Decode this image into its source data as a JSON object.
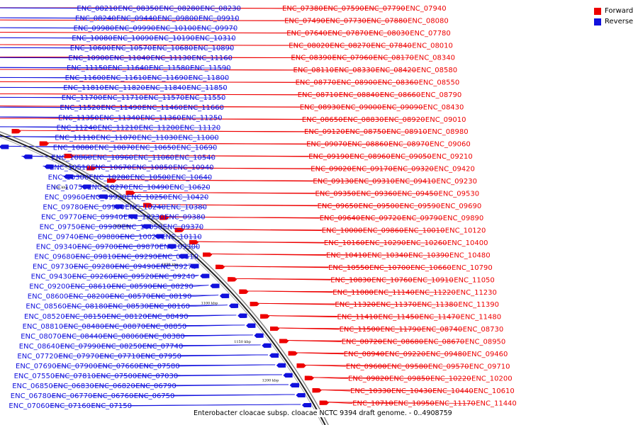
{
  "title": "Enterobacter cloacae subsp. cloacae NCTC 9394 draft genome. - 0..4908759",
  "legend": {
    "forward_label": "Forward",
    "reverse_label": "Reverse",
    "forward_color": "#ee0000",
    "reverse_color": "#1111dd"
  },
  "tick_marks": [
    "750 kbp",
    "800 kbp",
    "850 kbp",
    "900 kbp",
    "950 kbp",
    "1000 kbp",
    "1050 kbp",
    "1100 kbp",
    "1150 kbp",
    "1200 kbp"
  ],
  "forward_genes": [
    "ENC_07380",
    "ENC_07590",
    "ENC_07790",
    "ENC_07940",
    "ENC_07490",
    "ENC_07730",
    "ENC_07880",
    "ENC_08080",
    "ENC_07640",
    "ENC_07870",
    "ENC_08030",
    "ENC_07780",
    "ENC_08020",
    "ENC_08270",
    "ENC_07840",
    "ENC_08010",
    "ENC_08390",
    "ENC_07960",
    "ENC_08170",
    "ENC_08340",
    "ENC_08110",
    "ENC_08330",
    "ENC_08420",
    "ENC_08580",
    "ENC_08770",
    "ENC_08900",
    "ENC_08360",
    "ENC_08550",
    "ENC_08710",
    "ENC_08840",
    "ENC_08660",
    "ENC_08790",
    "ENC_08930",
    "ENC_09000",
    "ENC_09090",
    "ENC_08430",
    "ENC_08650",
    "ENC_08830",
    "ENC_08920",
    "ENC_09010",
    "ENC_09120",
    "ENC_08750",
    "ENC_08910",
    "ENC_08980",
    "ENC_09070",
    "ENC_08860",
    "ENC_08970",
    "ENC_09060",
    "ENC_09190",
    "ENC_08960",
    "ENC_09050",
    "ENC_09210",
    "ENC_09020",
    "ENC_09170",
    "ENC_09320",
    "ENC_09420",
    "ENC_09130",
    "ENC_09310",
    "ENC_09410",
    "ENC_09230",
    "ENC_09350",
    "ENC_09360",
    "ENC_09450",
    "ENC_09530",
    "ENC_09650",
    "ENC_09500",
    "ENC_09590",
    "ENC_09690",
    "ENC_09640",
    "ENC_09720",
    "ENC_09790",
    "ENC_09890",
    "ENC_10000",
    "ENC_09860",
    "ENC_10010",
    "ENC_10120",
    "ENC_10160",
    "ENC_10290",
    "ENC_10260",
    "ENC_10400",
    "ENC_10410",
    "ENC_10340",
    "ENC_10390",
    "ENC_10480",
    "ENC_10550",
    "ENC_10700",
    "ENC_10660",
    "ENC_10790",
    "ENC_10830",
    "ENC_10760",
    "ENC_10910",
    "ENC_11050",
    "ENC_11080",
    "ENC_11140",
    "ENC_11220",
    "ENC_11230",
    "ENC_11320",
    "ENC_11370",
    "ENC_11380",
    "ENC_11390",
    "ENC_11410",
    "ENC_11450",
    "ENC_11470",
    "ENC_11480",
    "ENC_11500",
    "ENC_11790",
    "ENC_08740",
    "ENC_08730",
    "ENC_08720",
    "ENC_08680",
    "ENC_08670",
    "ENC_08950",
    "ENC_08940",
    "ENC_09220",
    "ENC_09480",
    "ENC_09460",
    "ENC_09600",
    "ENC_09580",
    "ENC_09570",
    "ENC_09710",
    "ENC_09820",
    "ENC_09850",
    "ENC_10220",
    "ENC_10200",
    "ENC_10330",
    "ENC_10430",
    "ENC_10440",
    "ENC_10610",
    "ENC_10710",
    "ENC_10950",
    "ENC_11170",
    "ENC_11440"
  ],
  "reverse_genes": [
    "ENC_08210",
    "ENC_08350",
    "ENC_08280",
    "ENC_08230",
    "ENC_08240",
    "ENC_09440",
    "ENC_09800",
    "ENC_09910",
    "ENC_09980",
    "ENC_09990",
    "ENC_10100",
    "ENC_09970",
    "ENC_10080",
    "ENC_10090",
    "ENC_10190",
    "ENC_10310",
    "ENC_10600",
    "ENC_10570",
    "ENC_10680",
    "ENC_10890",
    "ENC_10900",
    "ENC_11040",
    "ENC_11130",
    "ENC_11160",
    "ENC_11150",
    "ENC_11640",
    "ENC_11580",
    "ENC_11590",
    "ENC_11600",
    "ENC_11610",
    "ENC_11690",
    "ENC_11800",
    "ENC_11810",
    "ENC_11820",
    "ENC_11840",
    "ENC_11850",
    "ENC_11700",
    "ENC_11710",
    "ENC_11570",
    "ENC_11550",
    "ENC_11520",
    "ENC_11490",
    "ENC_11460",
    "ENC_11660",
    "ENC_11350",
    "ENC_11340",
    "ENC_11360",
    "ENC_11250",
    "ENC_11240",
    "ENC_11210",
    "ENC_11200",
    "ENC_11120",
    "ENC_11110",
    "ENC_11070",
    "ENC_11030",
    "ENC_11000",
    "ENC_10880",
    "ENC_10870",
    "ENC_10650",
    "ENC_10690",
    "ENC_10860",
    "ENC_10960",
    "ENC_11060",
    "ENC_10540",
    "ENC_10510",
    "ENC_10670",
    "ENC_10850",
    "ENC_10940",
    "ENC_10300",
    "ENC_10280",
    "ENC_10500",
    "ENC_10640",
    "ENC_10750",
    "ENC_10270",
    "ENC_10490",
    "ENC_10620",
    "ENC_09960",
    "ENC_09920",
    "ENC_10250",
    "ENC_10420",
    "ENC_09780",
    "ENC_09950",
    "ENC_10240",
    "ENC_10380",
    "ENC_09770",
    "ENC_09940",
    "ENC_10230",
    "ENC_09380",
    "ENC_09750",
    "ENC_09900",
    "ENC_10050",
    "ENC_09370",
    "ENC_09740",
    "ENC_09880",
    "ENC_10020",
    "ENC_10110",
    "ENC_09340",
    "ENC_09700",
    "ENC_09870",
    "ENC_09300",
    "ENC_09680",
    "ENC_09810",
    "ENC_09290",
    "ENC_09510",
    "ENC_09730",
    "ENC_09280",
    "ENC_09490",
    "ENC_09270",
    "ENC_09430",
    "ENC_09260",
    "ENC_09520",
    "ENC_09240",
    "ENC_09200",
    "ENC_08610",
    "ENC_08590",
    "ENC_08290",
    "ENC_08600",
    "ENC_08200",
    "ENC_08570",
    "ENC_08190",
    "ENC_08560",
    "ENC_08180",
    "ENC_08530",
    "ENC_08160",
    "ENC_08520",
    "ENC_08150",
    "ENC_08120",
    "ENC_08490",
    "ENC_08810",
    "ENC_08480",
    "ENC_08870",
    "ENC_08850",
    "ENC_08070",
    "ENC_08440",
    "ENC_08060",
    "ENC_08380",
    "ENC_08640",
    "ENC_07990",
    "ENC_08250",
    "ENC_07740",
    "ENC_07720",
    "ENC_07970",
    "ENC_07710",
    "ENC_07950",
    "ENC_07690",
    "ENC_07900",
    "ENC_07660",
    "ENC_07580",
    "ENC_07550",
    "ENC_07810",
    "ENC_07500",
    "ENC_07030",
    "ENC_06850",
    "ENC_06830",
    "ENC_06820",
    "ENC_06790",
    "ENC_06780",
    "ENC_06770",
    "ENC_06760",
    "ENC_06750",
    "ENC_07060",
    "ENC_07160",
    "ENC_07150"
  ]
}
